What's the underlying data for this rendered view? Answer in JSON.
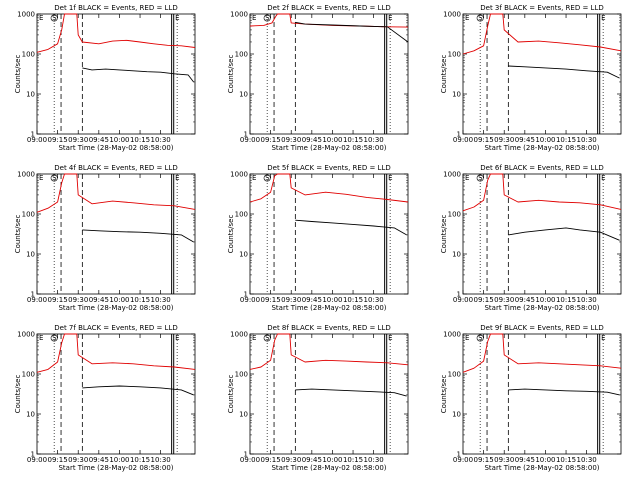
{
  "figure": {
    "xlabel": "Start Time (28-May-02 08:58:00)",
    "ylabel": "Counts/sec"
  },
  "chart_data": [
    {
      "type": "line",
      "title": "Det 1f BLACK = Events, RED = LLD",
      "xlabel": "Start Time (28-May-02 08:58:00)",
      "ylabel": "Counts/sec",
      "x_ticks": [
        "09:00",
        "09:15",
        "09:30",
        "09:45",
        "10:00",
        "10:15",
        "10:30"
      ],
      "y_ticks": [
        "1",
        "10",
        "100",
        "1000"
      ],
      "y_scale": "log",
      "ylim": [
        1,
        1000
      ],
      "markers": {
        "dashed": [
          [
            70,
            [
              10000,
              0
            ]
          ],
          [
            100,
            [
              10000,
              0
            ]
          ]
        ],
        "dotted": [
          [
            75
          ],
          [
            170
          ]
        ],
        "solid": [
          [
            160
          ],
          [
            163
          ]
        ]
      },
      "annotations": [
        "E",
        "S",
        "E"
      ],
      "series": [
        {
          "name": "RED = LLD",
          "color": "#e00000",
          "points": [
            [
              0,
              110
            ],
            [
              8,
              130
            ],
            [
              15,
              180
            ],
            [
              18,
              400
            ],
            [
              20,
              1000
            ],
            [
              21,
              1000
            ],
            [
              29,
              1000
            ],
            [
              30,
              300
            ],
            [
              33,
              200
            ],
            [
              45,
              180
            ],
            [
              55,
              210
            ],
            [
              65,
              220
            ],
            [
              75,
              200
            ],
            [
              85,
              180
            ],
            [
              95,
              165
            ],
            [
              105,
              160
            ],
            [
              115,
              145
            ]
          ]
        },
        {
          "name": "BLACK = Events",
          "color": "#000000",
          "points": [
            [
              33,
              45
            ],
            [
              40,
              40
            ],
            [
              50,
              42
            ],
            [
              60,
              40
            ],
            [
              70,
              38
            ],
            [
              80,
              36
            ],
            [
              90,
              35
            ],
            [
              100,
              32
            ],
            [
              110,
              30
            ],
            [
              114,
              20
            ]
          ]
        }
      ]
    },
    {
      "type": "line",
      "title": "Det 2f BLACK = Events, RED = LLD",
      "xlabel": "Start Time (28-May-02 08:58:00)",
      "ylabel": "Counts/sec",
      "x_ticks": [
        "09:00",
        "09:15",
        "09:30",
        "09:45",
        "10:00",
        "10:15",
        "10:30"
      ],
      "y_ticks": [
        "1",
        "10",
        "100",
        "1000"
      ],
      "y_scale": "log",
      "ylim": [
        1,
        1000
      ],
      "annotations": [
        "E",
        "S",
        "E"
      ],
      "series": [
        {
          "name": "RED = LLD",
          "color": "#e00000",
          "points": [
            [
              0,
              500
            ],
            [
              10,
              520
            ],
            [
              16,
              600
            ],
            [
              19,
              900
            ],
            [
              20,
              1000
            ],
            [
              29,
              1000
            ],
            [
              30,
              600
            ],
            [
              40,
              560
            ],
            [
              60,
              520
            ],
            [
              80,
              500
            ],
            [
              100,
              480
            ],
            [
              115,
              470
            ]
          ]
        },
        {
          "name": "BLACK = Events",
          "color": "#000000",
          "points": [
            [
              33,
              620
            ],
            [
              40,
              560
            ],
            [
              60,
              530
            ],
            [
              80,
              500
            ],
            [
              100,
              480
            ],
            [
              115,
              200
            ]
          ]
        }
      ]
    },
    {
      "type": "line",
      "title": "Det 3f BLACK = Events, RED = LLD",
      "xlabel": "Start Time (28-May-02 08:58:00)",
      "ylabel": "Counts/sec",
      "x_ticks": [
        "09:00",
        "09:15",
        "09:30",
        "09:45",
        "10:00",
        "10:15",
        "10:30"
      ],
      "y_ticks": [
        "1",
        "10",
        "100",
        "1000"
      ],
      "y_scale": "log",
      "ylim": [
        1,
        1000
      ],
      "annotations": [
        "E",
        "S",
        "E"
      ],
      "series": [
        {
          "name": "RED = LLD",
          "color": "#e00000",
          "points": [
            [
              0,
              100
            ],
            [
              8,
              120
            ],
            [
              15,
              160
            ],
            [
              18,
              500
            ],
            [
              20,
              1000
            ],
            [
              29,
              1000
            ],
            [
              30,
              400
            ],
            [
              40,
              200
            ],
            [
              55,
              210
            ],
            [
              70,
              190
            ],
            [
              85,
              170
            ],
            [
              100,
              150
            ],
            [
              115,
              120
            ]
          ]
        },
        {
          "name": "BLACK = Events",
          "color": "#000000",
          "points": [
            [
              33,
              50
            ],
            [
              45,
              48
            ],
            [
              60,
              45
            ],
            [
              75,
              42
            ],
            [
              90,
              38
            ],
            [
              105,
              35
            ],
            [
              114,
              25
            ]
          ]
        }
      ]
    },
    {
      "type": "line",
      "title": "Det 4f BLACK = Events, RED = LLD",
      "xlabel": "Start Time (28-May-02 08:58:00)",
      "ylabel": "Counts/sec",
      "x_ticks": [
        "09:00",
        "09:15",
        "09:30",
        "09:45",
        "10:00",
        "10:15",
        "10:30"
      ],
      "y_ticks": [
        "1",
        "10",
        "100",
        "1000"
      ],
      "y_scale": "log",
      "ylim": [
        1,
        1000
      ],
      "annotations": [
        "E",
        "S",
        "E"
      ],
      "series": [
        {
          "name": "RED = LLD",
          "color": "#e00000",
          "points": [
            [
              0,
              110
            ],
            [
              8,
              140
            ],
            [
              15,
              200
            ],
            [
              18,
              600
            ],
            [
              20,
              1000
            ],
            [
              29,
              1000
            ],
            [
              30,
              300
            ],
            [
              40,
              180
            ],
            [
              55,
              210
            ],
            [
              70,
              190
            ],
            [
              85,
              170
            ],
            [
              100,
              160
            ],
            [
              115,
              130
            ]
          ]
        },
        {
          "name": "BLACK = Events",
          "color": "#000000",
          "points": [
            [
              33,
              40
            ],
            [
              45,
              38
            ],
            [
              60,
              36
            ],
            [
              75,
              35
            ],
            [
              90,
              33
            ],
            [
              105,
              30
            ],
            [
              114,
              20
            ]
          ]
        }
      ]
    },
    {
      "type": "line",
      "title": "Det 5f BLACK = Events, RED = LLD",
      "xlabel": "Start Time (28-May-02 08:58:00)",
      "ylabel": "Counts/sec",
      "x_ticks": [
        "09:00",
        "09:15",
        "09:30",
        "09:45",
        "10:00",
        "10:15",
        "10:30"
      ],
      "y_ticks": [
        "1",
        "10",
        "100",
        "1000"
      ],
      "y_scale": "log",
      "ylim": [
        1,
        1000
      ],
      "annotations": [
        "E",
        "S",
        "E"
      ],
      "series": [
        {
          "name": "RED = LLD",
          "color": "#e00000",
          "points": [
            [
              0,
              200
            ],
            [
              8,
              240
            ],
            [
              15,
              350
            ],
            [
              18,
              900
            ],
            [
              20,
              1000
            ],
            [
              29,
              1000
            ],
            [
              30,
              450
            ],
            [
              40,
              300
            ],
            [
              55,
              350
            ],
            [
              70,
              310
            ],
            [
              85,
              260
            ],
            [
              100,
              230
            ],
            [
              115,
              200
            ]
          ]
        },
        {
          "name": "BLACK = Events",
          "color": "#000000",
          "points": [
            [
              33,
              70
            ],
            [
              45,
              65
            ],
            [
              60,
              60
            ],
            [
              75,
              55
            ],
            [
              90,
              50
            ],
            [
              105,
              45
            ],
            [
              114,
              30
            ]
          ]
        }
      ]
    },
    {
      "type": "line",
      "title": "Det 6f BLACK = Events, RED = LLD",
      "xlabel": "Start Time (28-May-02 08:58:00)",
      "ylabel": "Counts/sec",
      "x_ticks": [
        "09:00",
        "09:15",
        "09:30",
        "09:45",
        "10:00",
        "10:15",
        "10:30"
      ],
      "y_ticks": [
        "1",
        "10",
        "100",
        "1000"
      ],
      "y_scale": "log",
      "ylim": [
        1,
        1000
      ],
      "annotations": [
        "E",
        "S",
        "E"
      ],
      "series": [
        {
          "name": "RED = LLD",
          "color": "#e00000",
          "points": [
            [
              0,
              120
            ],
            [
              8,
              150
            ],
            [
              15,
              220
            ],
            [
              18,
              700
            ],
            [
              20,
              1000
            ],
            [
              29,
              1000
            ],
            [
              30,
              300
            ],
            [
              40,
              200
            ],
            [
              55,
              220
            ],
            [
              70,
              200
            ],
            [
              85,
              190
            ],
            [
              100,
              170
            ],
            [
              115,
              130
            ]
          ]
        },
        {
          "name": "BLACK = Events",
          "color": "#000000",
          "points": [
            [
              33,
              30
            ],
            [
              45,
              35
            ],
            [
              60,
              40
            ],
            [
              75,
              45
            ],
            [
              85,
              40
            ],
            [
              100,
              35
            ],
            [
              114,
              22
            ]
          ]
        }
      ]
    },
    {
      "type": "line",
      "title": "Det 7f BLACK = Events, RED = LLD",
      "xlabel": "Start Time (28-May-02 08:58:00)",
      "ylabel": "Counts/sec",
      "x_ticks": [
        "09:00",
        "09:15",
        "09:30",
        "09:45",
        "10:00",
        "10:15",
        "10:30"
      ],
      "y_ticks": [
        "1",
        "10",
        "100",
        "1000"
      ],
      "y_scale": "log",
      "ylim": [
        1,
        1000
      ],
      "annotations": [
        "E",
        "S",
        "E"
      ],
      "series": [
        {
          "name": "RED = LLD",
          "color": "#e00000",
          "points": [
            [
              0,
              110
            ],
            [
              8,
              130
            ],
            [
              15,
              200
            ],
            [
              18,
              600
            ],
            [
              20,
              1000
            ],
            [
              29,
              1000
            ],
            [
              30,
              300
            ],
            [
              40,
              180
            ],
            [
              55,
              190
            ],
            [
              70,
              180
            ],
            [
              85,
              160
            ],
            [
              100,
              150
            ],
            [
              115,
              130
            ]
          ]
        },
        {
          "name": "BLACK = Events",
          "color": "#000000",
          "points": [
            [
              33,
              45
            ],
            [
              45,
              48
            ],
            [
              60,
              50
            ],
            [
              75,
              48
            ],
            [
              90,
              45
            ],
            [
              105,
              40
            ],
            [
              114,
              30
            ]
          ]
        }
      ]
    },
    {
      "type": "line",
      "title": "Det 8f BLACK = Events, RED = LLD",
      "xlabel": "Start Time (28-May-02 08:58:00)",
      "ylabel": "Counts/sec",
      "x_ticks": [
        "09:00",
        "09:15",
        "09:30",
        "09:45",
        "10:00",
        "10:15",
        "10:30"
      ],
      "y_ticks": [
        "1",
        "10",
        "100",
        "1000"
      ],
      "y_scale": "log",
      "ylim": [
        1,
        1000
      ],
      "annotations": [
        "E",
        "S",
        "E"
      ],
      "series": [
        {
          "name": "RED = LLD",
          "color": "#e00000",
          "points": [
            [
              0,
              130
            ],
            [
              8,
              150
            ],
            [
              15,
              220
            ],
            [
              18,
              700
            ],
            [
              20,
              1000
            ],
            [
              29,
              1000
            ],
            [
              30,
              300
            ],
            [
              40,
              200
            ],
            [
              55,
              220
            ],
            [
              70,
              210
            ],
            [
              85,
              200
            ],
            [
              100,
              190
            ],
            [
              115,
              170
            ]
          ]
        },
        {
          "name": "BLACK = Events",
          "color": "#000000",
          "points": [
            [
              33,
              40
            ],
            [
              45,
              42
            ],
            [
              60,
              40
            ],
            [
              75,
              38
            ],
            [
              90,
              36
            ],
            [
              105,
              34
            ],
            [
              114,
              28
            ]
          ]
        }
      ]
    },
    {
      "type": "line",
      "title": "Det 9f BLACK = Events, RED = LLD",
      "xlabel": "Start Time (28-May-02 08:58:00)",
      "ylabel": "Counts/sec",
      "x_ticks": [
        "09:00",
        "09:15",
        "09:30",
        "09:45",
        "10:00",
        "10:15",
        "10:30"
      ],
      "y_ticks": [
        "1",
        "10",
        "100",
        "1000"
      ],
      "y_scale": "log",
      "ylim": [
        1,
        1000
      ],
      "annotations": [
        "E",
        "S",
        "E"
      ],
      "series": [
        {
          "name": "RED = LLD",
          "color": "#e00000",
          "points": [
            [
              0,
              110
            ],
            [
              8,
              140
            ],
            [
              15,
              210
            ],
            [
              18,
              650
            ],
            [
              20,
              1000
            ],
            [
              29,
              1000
            ],
            [
              30,
              300
            ],
            [
              40,
              180
            ],
            [
              55,
              190
            ],
            [
              70,
              180
            ],
            [
              85,
              170
            ],
            [
              100,
              160
            ],
            [
              115,
              140
            ]
          ]
        },
        {
          "name": "BLACK = Events",
          "color": "#000000",
          "points": [
            [
              33,
              40
            ],
            [
              45,
              42
            ],
            [
              60,
              40
            ],
            [
              75,
              38
            ],
            [
              90,
              37
            ],
            [
              105,
              35
            ],
            [
              114,
              30
            ]
          ]
        }
      ]
    }
  ]
}
